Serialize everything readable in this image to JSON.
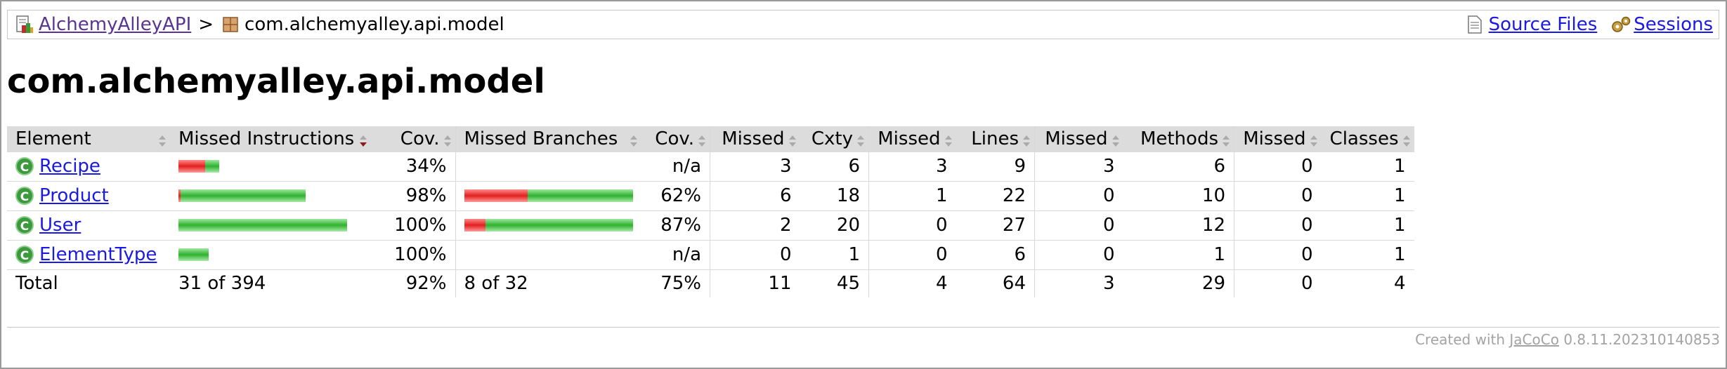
{
  "breadcrumb": {
    "project_link": "AlchemyAlleyAPI",
    "separator": ">",
    "package": "com.alchemyalley.api.model"
  },
  "info": {
    "source_files": "Source Files",
    "sessions": "Sessions"
  },
  "page_title": "com.alchemyalley.api.model",
  "table": {
    "headers": [
      "Element",
      "Missed Instructions",
      "Cov.",
      "Missed Branches",
      "Cov.",
      "Missed",
      "Cxty",
      "Missed",
      "Lines",
      "Missed",
      "Methods",
      "Missed",
      "Classes"
    ],
    "rows": [
      {
        "name": "Recipe",
        "instr_missed_pct": 66,
        "instr_cov": "34%",
        "branch_missed_pct": null,
        "branch_cov": "n/a",
        "cxty_missed": "3",
        "cxty": "6",
        "lines_missed": "3",
        "lines": "9",
        "methods_missed": "3",
        "methods": "6",
        "classes_missed": "0",
        "classes": "1"
      },
      {
        "name": "Product",
        "instr_missed_pct": 2,
        "instr_cov": "98%",
        "branch_missed_pct": 38,
        "branch_cov": "62%",
        "cxty_missed": "6",
        "cxty": "18",
        "lines_missed": "1",
        "lines": "22",
        "methods_missed": "0",
        "methods": "10",
        "classes_missed": "0",
        "classes": "1"
      },
      {
        "name": "User",
        "instr_missed_pct": 0,
        "instr_cov": "100%",
        "branch_missed_pct": 13,
        "branch_cov": "87%",
        "cxty_missed": "2",
        "cxty": "20",
        "lines_missed": "0",
        "lines": "27",
        "methods_missed": "0",
        "methods": "12",
        "classes_missed": "0",
        "classes": "1"
      },
      {
        "name": "ElementType",
        "instr_missed_pct": 0,
        "instr_cov": "100%",
        "branch_missed_pct": null,
        "branch_cov": "n/a",
        "cxty_missed": "0",
        "cxty": "1",
        "lines_missed": "0",
        "lines": "6",
        "methods_missed": "0",
        "methods": "1",
        "classes_missed": "0",
        "classes": "1"
      }
    ],
    "total": {
      "label": "Total",
      "instr": "31 of 394",
      "instr_cov": "92%",
      "branch": "8 of 32",
      "branch_cov": "75%",
      "cxty_missed": "11",
      "cxty": "45",
      "lines_missed": "4",
      "lines": "64",
      "methods_missed": "3",
      "methods": "29",
      "classes_missed": "0",
      "classes": "4"
    }
  },
  "footer": {
    "prefix": "Created with",
    "link": "JaCoCo",
    "version": "0.8.11.202310140853"
  },
  "colors": {
    "missed": "#e32020",
    "covered": "#2fb12f",
    "header_bg": "#dcdcdc",
    "link": "#1a1ae6",
    "visited_link": "#5a3495"
  }
}
